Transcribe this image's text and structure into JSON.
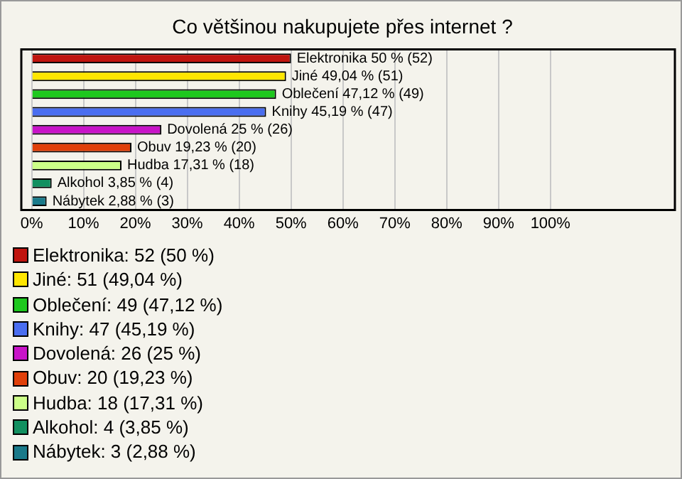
{
  "chart_data": {
    "type": "bar",
    "orientation": "horizontal",
    "title": "Co většinou nakupujete přes internet ?",
    "categories": [
      null,
      null,
      null,
      null,
      null,
      null,
      null,
      null,
      null
    ],
    "values": [
      50,
      49.04,
      47.12,
      45.19,
      25,
      19.23,
      17.31,
      3.85,
      2.88
    ],
    "colors": [
      "#c0150f",
      "#ffe600",
      "#1ec81e",
      "#4a6ef0",
      "#c814c8",
      "#e0400a",
      "#ccff88",
      "#129060",
      "#1a7a8a"
    ],
    "value_labels": [
      "Elektronika 50 % (52)",
      "Jiné 49,04 % (51)",
      "Oblečení 47,12 % (49)",
      "Knihy 45,19 % (47)",
      "Dovolená 25 % (26)",
      "Obuv 19,23 % (20)",
      "Hudba 17,31 % (18)",
      "Alkohol 3,85 % (4)",
      "Nábytek 2,88 % (3)"
    ],
    "xlim": [
      -2,
      124
    ],
    "xticks": [
      {
        "value": 0,
        "label": "0%"
      },
      {
        "value": 10,
        "label": "10%"
      },
      {
        "value": 20,
        "label": "20%"
      },
      {
        "value": 30,
        "label": "30%"
      },
      {
        "value": 40,
        "label": "40%"
      },
      {
        "value": 50,
        "label": "50%"
      },
      {
        "value": 60,
        "label": "60%"
      },
      {
        "value": 70,
        "label": "70%"
      },
      {
        "value": 80,
        "label": "80%"
      },
      {
        "value": 90,
        "label": "90%"
      },
      {
        "value": 100,
        "label": "100%"
      }
    ],
    "grid": "x",
    "tick_labels": "x",
    "annotations": [
      "Elektronika: 52 (50 %)",
      "Jiné: 51 (49,04 %)",
      "Oblečení: 49 (47,12 %)",
      "Knihy: 47 (45,19 %)",
      "Dovolená: 26 (25 %)",
      "Obuv: 20 (19,23 %)",
      "Hudba: 18 (17,31 %)",
      "Alkohol: 4 (3,85 %)",
      "Nábytek: 3 (2,88 %)"
    ]
  }
}
